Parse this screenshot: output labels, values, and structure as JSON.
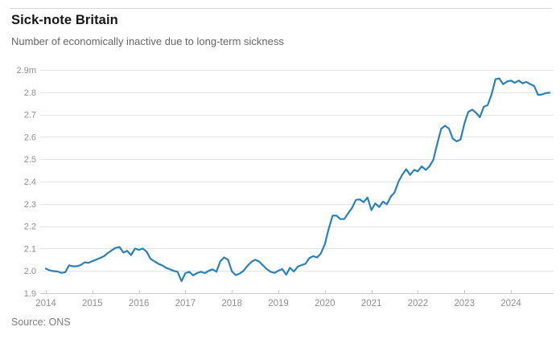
{
  "header": {
    "title": "Sick-note Britain",
    "subtitle": "Number of economically inactive due to long-term sickness"
  },
  "source": "Source: ONS",
  "colors": {
    "line": "#2a80b9",
    "grid": "#e4e4e4",
    "axis": "#cccccc",
    "tick": "#c9c9c9",
    "title_text": "#161616",
    "subtitle_text": "#666666",
    "axis_text": "#8f8f8f"
  },
  "chart_data": {
    "type": "line",
    "title": "Sick-note Britain",
    "subtitle": "Number of economically inactive due to long-term sickness",
    "source": "Source: ONS",
    "unit": "millions of people",
    "grid": "horizontal",
    "legend": "none",
    "xlim": [
      2013.9,
      2024.95
    ],
    "ylim": [
      1.9,
      2.9
    ],
    "x_ticks": [
      2014,
      2015,
      2016,
      2017,
      2018,
      2019,
      2020,
      2021,
      2022,
      2023,
      2024
    ],
    "y_ticks": [
      {
        "value": 2.9,
        "label": "2.9m"
      },
      {
        "value": 2.8,
        "label": "2.8"
      },
      {
        "value": 2.7,
        "label": "2.7"
      },
      {
        "value": 2.6,
        "label": "2.6"
      },
      {
        "value": 2.5,
        "label": "2.5"
      },
      {
        "value": 2.4,
        "label": "2.4"
      },
      {
        "value": 2.3,
        "label": "2.3"
      },
      {
        "value": 2.2,
        "label": "2.2"
      },
      {
        "value": 2.1,
        "label": "2.1"
      },
      {
        "value": 2.0,
        "label": "2.0"
      },
      {
        "value": 1.9,
        "label": "1.9"
      }
    ],
    "series": [
      {
        "name": "Economically inactive due to long-term sickness",
        "color": "#2a80b9",
        "points": [
          [
            2014.0,
            2.01
          ],
          [
            2014.083,
            2.002
          ],
          [
            2014.167,
            1.999
          ],
          [
            2014.25,
            1.997
          ],
          [
            2014.333,
            1.991
          ],
          [
            2014.417,
            1.994
          ],
          [
            2014.5,
            2.025
          ],
          [
            2014.583,
            2.02
          ],
          [
            2014.667,
            2.021
          ],
          [
            2014.75,
            2.026
          ],
          [
            2014.833,
            2.038
          ],
          [
            2014.917,
            2.036
          ],
          [
            2015.0,
            2.044
          ],
          [
            2015.083,
            2.05
          ],
          [
            2015.167,
            2.058
          ],
          [
            2015.25,
            2.066
          ],
          [
            2015.333,
            2.08
          ],
          [
            2015.417,
            2.092
          ],
          [
            2015.5,
            2.103
          ],
          [
            2015.583,
            2.107
          ],
          [
            2015.667,
            2.082
          ],
          [
            2015.75,
            2.09
          ],
          [
            2015.833,
            2.071
          ],
          [
            2015.917,
            2.1
          ],
          [
            2016.0,
            2.094
          ],
          [
            2016.083,
            2.1
          ],
          [
            2016.167,
            2.086
          ],
          [
            2016.25,
            2.054
          ],
          [
            2016.333,
            2.043
          ],
          [
            2016.417,
            2.032
          ],
          [
            2016.5,
            2.025
          ],
          [
            2016.583,
            2.014
          ],
          [
            2016.667,
            2.007
          ],
          [
            2016.75,
            2.0
          ],
          [
            2016.833,
            1.996
          ],
          [
            2016.917,
            1.954
          ],
          [
            2017.0,
            1.99
          ],
          [
            2017.083,
            1.996
          ],
          [
            2017.167,
            1.98
          ],
          [
            2017.25,
            1.99
          ],
          [
            2017.333,
            1.996
          ],
          [
            2017.417,
            1.99
          ],
          [
            2017.5,
            2.0
          ],
          [
            2017.583,
            2.007
          ],
          [
            2017.667,
            1.996
          ],
          [
            2017.75,
            2.043
          ],
          [
            2017.833,
            2.06
          ],
          [
            2017.917,
            2.05
          ],
          [
            2018.0,
            1.998
          ],
          [
            2018.083,
            1.981
          ],
          [
            2018.167,
            1.988
          ],
          [
            2018.25,
            2.0
          ],
          [
            2018.333,
            2.022
          ],
          [
            2018.417,
            2.04
          ],
          [
            2018.5,
            2.05
          ],
          [
            2018.583,
            2.042
          ],
          [
            2018.667,
            2.025
          ],
          [
            2018.75,
            2.008
          ],
          [
            2018.833,
            1.996
          ],
          [
            2018.917,
            1.991
          ],
          [
            2019.0,
            2.001
          ],
          [
            2019.083,
            2.008
          ],
          [
            2019.167,
            1.983
          ],
          [
            2019.25,
            2.014
          ],
          [
            2019.333,
            1.997
          ],
          [
            2019.417,
            2.019
          ],
          [
            2019.5,
            2.026
          ],
          [
            2019.583,
            2.032
          ],
          [
            2019.667,
            2.058
          ],
          [
            2019.75,
            2.066
          ],
          [
            2019.833,
            2.06
          ],
          [
            2019.917,
            2.079
          ],
          [
            2020.0,
            2.12
          ],
          [
            2020.083,
            2.19
          ],
          [
            2020.167,
            2.248
          ],
          [
            2020.25,
            2.247
          ],
          [
            2020.333,
            2.232
          ],
          [
            2020.417,
            2.232
          ],
          [
            2020.5,
            2.258
          ],
          [
            2020.583,
            2.282
          ],
          [
            2020.667,
            2.318
          ],
          [
            2020.75,
            2.32
          ],
          [
            2020.833,
            2.308
          ],
          [
            2020.917,
            2.328
          ],
          [
            2021.0,
            2.272
          ],
          [
            2021.083,
            2.302
          ],
          [
            2021.167,
            2.286
          ],
          [
            2021.25,
            2.31
          ],
          [
            2021.333,
            2.298
          ],
          [
            2021.417,
            2.332
          ],
          [
            2021.5,
            2.352
          ],
          [
            2021.583,
            2.4
          ],
          [
            2021.667,
            2.432
          ],
          [
            2021.75,
            2.455
          ],
          [
            2021.833,
            2.43
          ],
          [
            2021.917,
            2.452
          ],
          [
            2022.0,
            2.446
          ],
          [
            2022.083,
            2.468
          ],
          [
            2022.167,
            2.452
          ],
          [
            2022.25,
            2.468
          ],
          [
            2022.333,
            2.498
          ],
          [
            2022.417,
            2.57
          ],
          [
            2022.5,
            2.636
          ],
          [
            2022.583,
            2.65
          ],
          [
            2022.667,
            2.637
          ],
          [
            2022.75,
            2.592
          ],
          [
            2022.833,
            2.58
          ],
          [
            2022.917,
            2.588
          ],
          [
            2023.0,
            2.66
          ],
          [
            2023.083,
            2.712
          ],
          [
            2023.167,
            2.722
          ],
          [
            2023.25,
            2.708
          ],
          [
            2023.333,
            2.688
          ],
          [
            2023.417,
            2.735
          ],
          [
            2023.5,
            2.742
          ],
          [
            2023.583,
            2.79
          ],
          [
            2023.667,
            2.858
          ],
          [
            2023.75,
            2.862
          ],
          [
            2023.833,
            2.836
          ],
          [
            2023.917,
            2.848
          ],
          [
            2024.0,
            2.852
          ],
          [
            2024.083,
            2.842
          ],
          [
            2024.167,
            2.852
          ],
          [
            2024.25,
            2.84
          ],
          [
            2024.333,
            2.846
          ],
          [
            2024.417,
            2.836
          ],
          [
            2024.5,
            2.828
          ],
          [
            2024.583,
            2.788
          ],
          [
            2024.667,
            2.79
          ],
          [
            2024.75,
            2.796
          ],
          [
            2024.833,
            2.798
          ]
        ]
      }
    ]
  }
}
